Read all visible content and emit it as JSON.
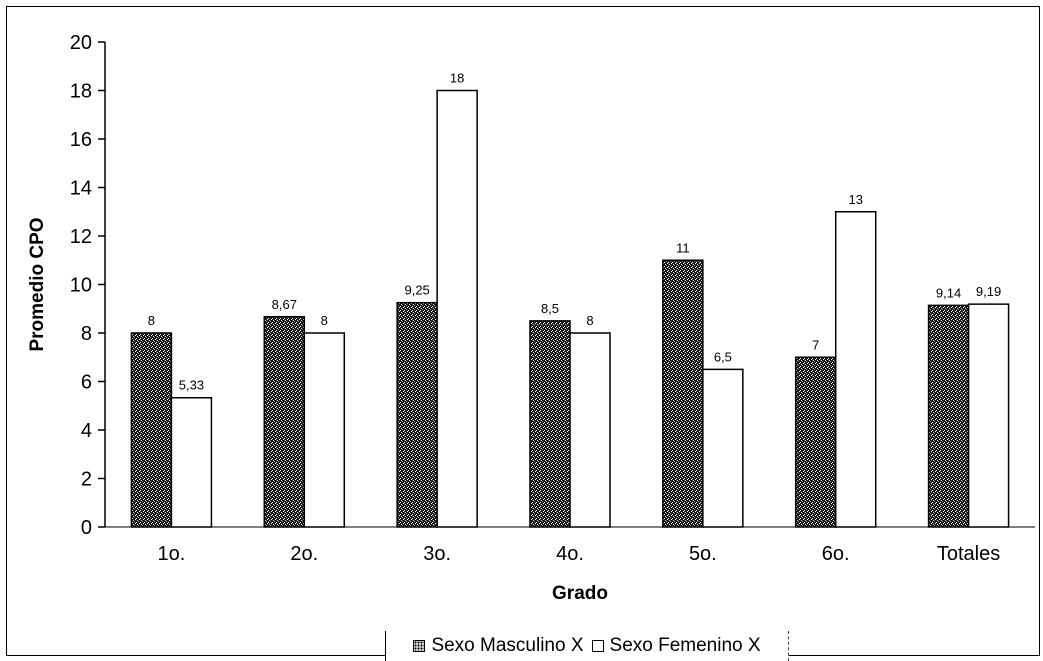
{
  "chart_data": {
    "type": "bar",
    "title": "",
    "xlabel": "Grado",
    "ylabel": "Promedio CPO",
    "categories": [
      "1o.",
      "2o.",
      "3o.",
      "4o.",
      "5o.",
      "6o.",
      "Totales"
    ],
    "ylim": [
      0,
      20
    ],
    "yticks": [
      0,
      2,
      4,
      6,
      8,
      10,
      12,
      14,
      16,
      18,
      20
    ],
    "grid": false,
    "legend_position": "bottom",
    "series": [
      {
        "name": "Sexo Masculino X",
        "values": [
          8,
          8.67,
          9.25,
          8.5,
          11,
          7,
          9.14
        ],
        "labels": [
          "8",
          "8,67",
          "9,25",
          "8,5",
          "11",
          "7",
          "9,14"
        ],
        "fill": "#2b2b2b"
      },
      {
        "name": "Sexo Femenino X",
        "values": [
          5.33,
          8,
          18,
          8,
          6.5,
          13,
          9.19
        ],
        "labels": [
          "5,33",
          "8",
          "18",
          "8",
          "6,5",
          "13",
          "9,19"
        ],
        "fill": "#ffffff"
      }
    ]
  }
}
